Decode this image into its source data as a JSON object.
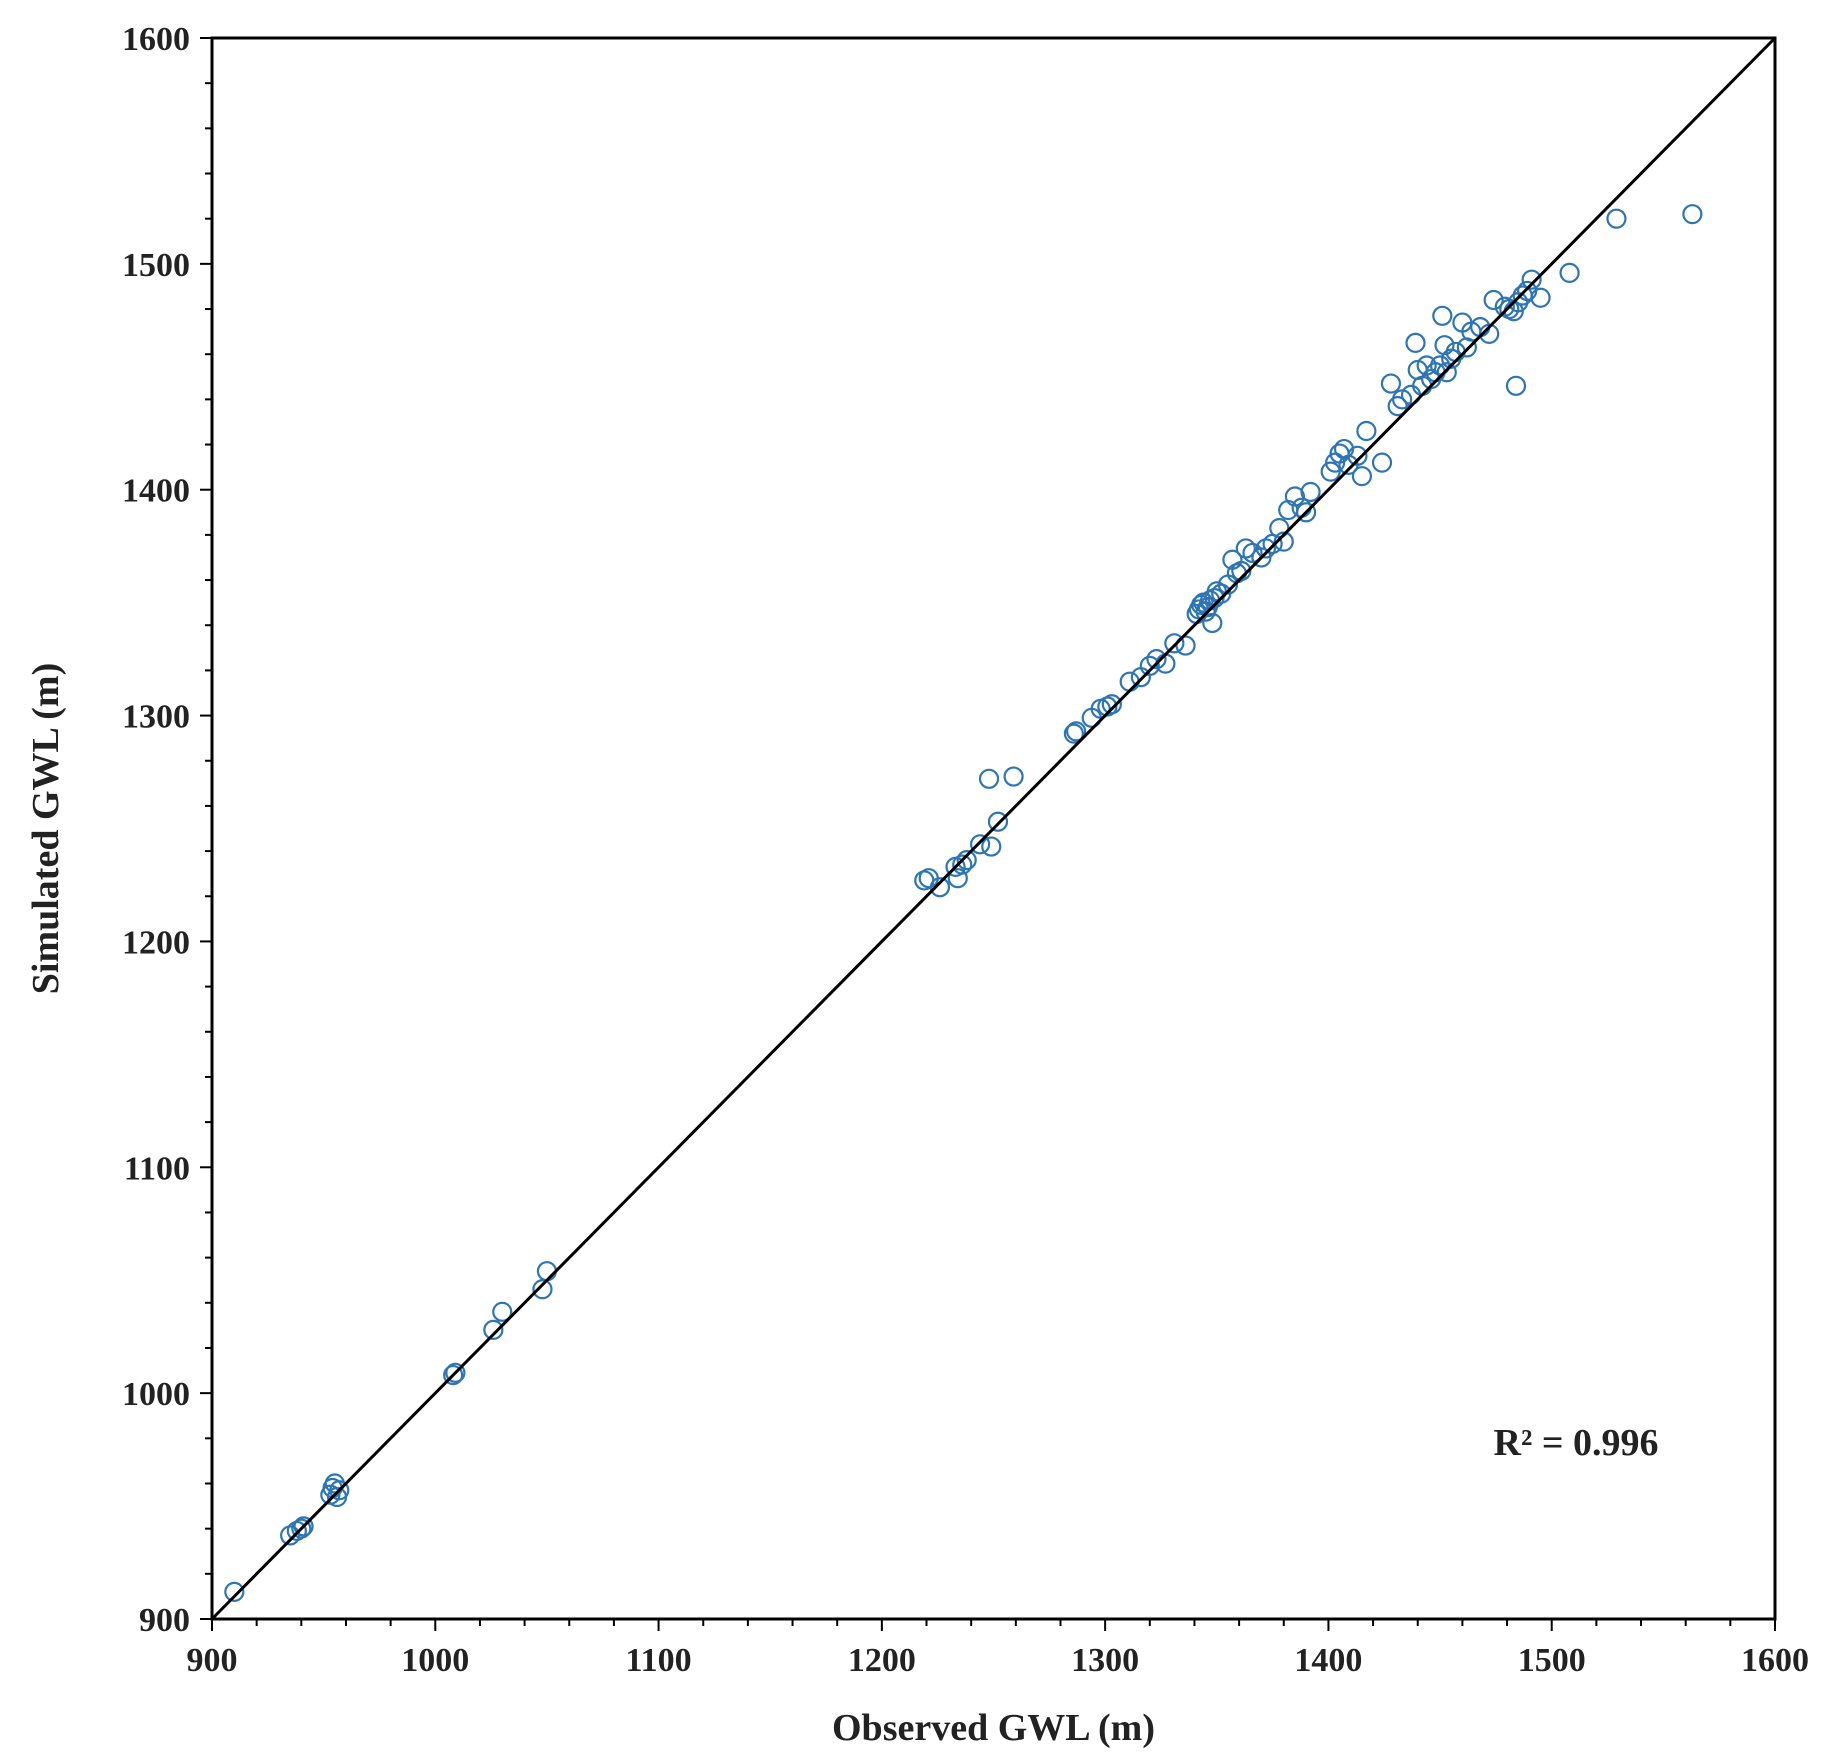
{
  "chart_data": {
    "type": "scatter",
    "title": "",
    "xlabel": "Observed GWL (m)",
    "ylabel": "Simulated GWL (m)",
    "xlim": [
      900,
      1600
    ],
    "ylim": [
      900,
      1600
    ],
    "xticks": [
      "900",
      "1000",
      "1100",
      "1200",
      "1300",
      "1400",
      "1500",
      "1600"
    ],
    "yticks": [
      "900",
      "1000",
      "1100",
      "1200",
      "1300",
      "1400",
      "1500",
      "1600"
    ],
    "grid": false,
    "legend": "none",
    "annotation": "R² = 0.996",
    "marker_color": "#2E75B6",
    "line_color": "#000000",
    "reference_line": {
      "x": [
        900,
        1600
      ],
      "y": [
        900,
        1600
      ]
    },
    "points": [
      [
        910,
        912
      ],
      [
        935,
        937
      ],
      [
        938,
        939
      ],
      [
        940,
        940
      ],
      [
        941,
        941
      ],
      [
        953,
        955
      ],
      [
        954,
        958
      ],
      [
        955,
        960
      ],
      [
        956,
        954
      ],
      [
        957,
        957
      ],
      [
        1008,
        1008
      ],
      [
        1009,
        1009
      ],
      [
        1026,
        1028
      ],
      [
        1030,
        1036
      ],
      [
        1048,
        1046
      ],
      [
        1050,
        1054
      ],
      [
        1219,
        1227
      ],
      [
        1221,
        1228
      ],
      [
        1226,
        1224
      ],
      [
        1233,
        1233
      ],
      [
        1234,
        1228
      ],
      [
        1236,
        1234
      ],
      [
        1238,
        1236
      ],
      [
        1244,
        1243
      ],
      [
        1248,
        1272
      ],
      [
        1249,
        1242
      ],
      [
        1252,
        1253
      ],
      [
        1259,
        1273
      ],
      [
        1286,
        1292
      ],
      [
        1287,
        1293
      ],
      [
        1294,
        1299
      ],
      [
        1298,
        1303
      ],
      [
        1301,
        1304
      ],
      [
        1303,
        1305
      ],
      [
        1311,
        1315
      ],
      [
        1316,
        1317
      ],
      [
        1320,
        1322
      ],
      [
        1323,
        1325
      ],
      [
        1327,
        1323
      ],
      [
        1331,
        1332
      ],
      [
        1336,
        1331
      ],
      [
        1341,
        1345
      ],
      [
        1342,
        1347
      ],
      [
        1343,
        1349
      ],
      [
        1344,
        1350
      ],
      [
        1345,
        1346
      ],
      [
        1346,
        1348
      ],
      [
        1347,
        1351
      ],
      [
        1348,
        1341
      ],
      [
        1349,
        1352
      ],
      [
        1350,
        1355
      ],
      [
        1352,
        1354
      ],
      [
        1355,
        1358
      ],
      [
        1357,
        1369
      ],
      [
        1359,
        1363
      ],
      [
        1361,
        1364
      ],
      [
        1363,
        1374
      ],
      [
        1366,
        1372
      ],
      [
        1370,
        1370
      ],
      [
        1372,
        1374
      ],
      [
        1375,
        1376
      ],
      [
        1378,
        1383
      ],
      [
        1380,
        1377
      ],
      [
        1382,
        1391
      ],
      [
        1385,
        1397
      ],
      [
        1388,
        1392
      ],
      [
        1390,
        1390
      ],
      [
        1392,
        1399
      ],
      [
        1401,
        1408
      ],
      [
        1403,
        1412
      ],
      [
        1405,
        1416
      ],
      [
        1407,
        1418
      ],
      [
        1409,
        1411
      ],
      [
        1413,
        1415
      ],
      [
        1415,
        1406
      ],
      [
        1417,
        1426
      ],
      [
        1424,
        1412
      ],
      [
        1428,
        1447
      ],
      [
        1431,
        1437
      ],
      [
        1433,
        1440
      ],
      [
        1437,
        1442
      ],
      [
        1439,
        1465
      ],
      [
        1440,
        1453
      ],
      [
        1442,
        1446
      ],
      [
        1444,
        1455
      ],
      [
        1446,
        1449
      ],
      [
        1448,
        1452
      ],
      [
        1450,
        1455
      ],
      [
        1451,
        1477
      ],
      [
        1452,
        1464
      ],
      [
        1453,
        1452
      ],
      [
        1455,
        1458
      ],
      [
        1457,
        1461
      ],
      [
        1460,
        1474
      ],
      [
        1462,
        1463
      ],
      [
        1464,
        1470
      ],
      [
        1468,
        1472
      ],
      [
        1472,
        1469
      ],
      [
        1474,
        1484
      ],
      [
        1479,
        1481
      ],
      [
        1481,
        1480
      ],
      [
        1483,
        1479
      ],
      [
        1484,
        1446
      ],
      [
        1485,
        1483
      ],
      [
        1487,
        1486
      ],
      [
        1489,
        1488
      ],
      [
        1491,
        1493
      ],
      [
        1495,
        1485
      ],
      [
        1508,
        1496
      ],
      [
        1529,
        1520
      ],
      [
        1563,
        1522
      ]
    ]
  }
}
